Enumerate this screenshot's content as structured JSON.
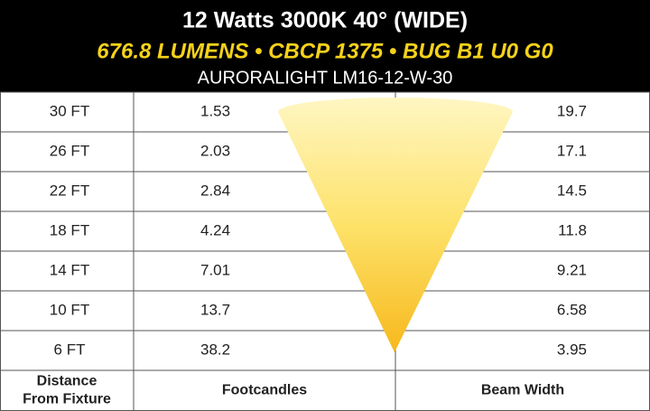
{
  "header": {
    "title": "12 Watts 3000K 40° (WIDE)",
    "subtitle": "676.8 LUMENS • CBCP 1375 • BUG B1 U0 G0",
    "model": "AURORALIGHT LM16-12-W-30"
  },
  "table": {
    "rows": [
      [
        "30 FT",
        "1.53",
        "19.7"
      ],
      [
        "26 FT",
        "2.03",
        "17.1"
      ],
      [
        "22 FT",
        "2.84",
        "14.5"
      ],
      [
        "18 FT",
        "4.24",
        "11.8"
      ],
      [
        "14 FT",
        "7.01",
        "9.21"
      ],
      [
        "10 FT",
        "13.7",
        "6.58"
      ],
      [
        "6 FT",
        "38.2",
        "3.95"
      ]
    ],
    "columns": [
      [
        "Distance",
        "From Fixture"
      ],
      [
        "Footcandles"
      ],
      [
        "Beam Width"
      ]
    ]
  }
}
